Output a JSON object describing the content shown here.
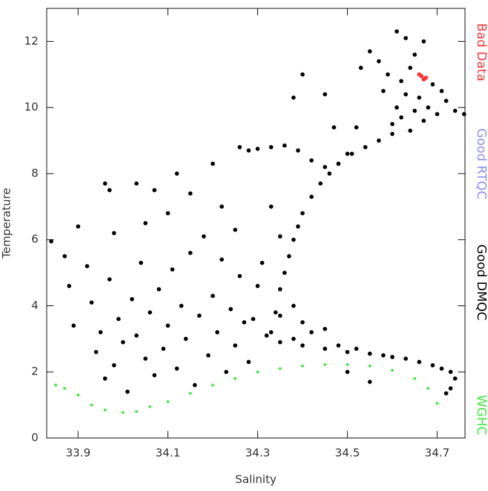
{
  "chart_data": {
    "type": "scatter",
    "x_label": "Salinity",
    "y_label": "Temperature",
    "xlim": [
      33.83,
      34.762
    ],
    "ylim": [
      0,
      13
    ],
    "xticks": [
      33.9,
      34.1,
      34.3,
      34.5,
      34.7
    ],
    "yticks": [
      0,
      2,
      4,
      6,
      8,
      10,
      12
    ],
    "series": [
      {
        "name": "Bad Data",
        "color": "#ff3333",
        "x": [
          34.66,
          34.665,
          34.67,
          34.675
        ],
        "y": [
          11.0,
          10.95,
          10.85,
          10.9
        ]
      },
      {
        "name": "Good RTQC",
        "color": "#8c8cff",
        "x": [],
        "y": []
      },
      {
        "name": "Good DMQC",
        "color": "#000000",
        "x": [
          33.84,
          33.87,
          33.88,
          33.89,
          33.9,
          33.92,
          33.93,
          33.94,
          33.95,
          33.96,
          33.97,
          33.98,
          33.99,
          34.0,
          34.01,
          34.02,
          34.03,
          34.04,
          34.05,
          34.06,
          34.07,
          34.08,
          34.09,
          34.1,
          34.11,
          34.12,
          34.13,
          34.14,
          34.15,
          34.16,
          34.17,
          34.18,
          34.19,
          34.2,
          34.21,
          34.22,
          34.23,
          34.24,
          34.25,
          34.26,
          34.27,
          34.28,
          34.29,
          34.3,
          33.96,
          33.97,
          34.03,
          34.07,
          34.12,
          34.2,
          34.15,
          34.1,
          34.05,
          33.98,
          34.22,
          34.25,
          34.26,
          34.28,
          34.3,
          34.33,
          34.36,
          34.39,
          34.42,
          34.45,
          34.48,
          34.5,
          34.47,
          34.52,
          34.45,
          34.4,
          34.38,
          34.33,
          34.34,
          34.35,
          34.36,
          34.37,
          34.38,
          34.39,
          34.4,
          34.42,
          34.44,
          34.46,
          34.48,
          34.51,
          34.54,
          34.57,
          34.6,
          34.33,
          34.35,
          34.31,
          34.6,
          34.61,
          34.62,
          34.63,
          34.64,
          34.65,
          34.66,
          34.67,
          34.68,
          34.7,
          34.72,
          34.74,
          34.76,
          34.55,
          34.57,
          34.59,
          34.61,
          34.63,
          34.65,
          34.67,
          34.64,
          34.62,
          34.69,
          34.71,
          34.53,
          34.58,
          34.32,
          34.35,
          34.38,
          34.4,
          34.42,
          34.45,
          34.48,
          34.5,
          34.52,
          34.55,
          34.58,
          34.6,
          34.63,
          34.66,
          34.69,
          34.71,
          34.73,
          34.74,
          34.73,
          34.72,
          34.4,
          34.45,
          34.5,
          34.55,
          34.35,
          34.38
        ],
        "y": [
          5.95,
          5.5,
          4.6,
          3.4,
          6.4,
          5.2,
          4.1,
          2.6,
          3.2,
          1.8,
          4.8,
          2.2,
          3.6,
          2.9,
          1.4,
          4.2,
          3.1,
          5.3,
          2.4,
          3.8,
          1.9,
          4.5,
          2.7,
          3.4,
          5.1,
          2.1,
          4.0,
          3.0,
          5.6,
          1.6,
          3.7,
          6.1,
          2.5,
          4.3,
          3.2,
          5.4,
          2.0,
          3.9,
          2.8,
          4.9,
          3.5,
          2.3,
          3.6,
          4.6,
          7.7,
          7.5,
          7.7,
          7.5,
          8.0,
          8.3,
          7.4,
          6.8,
          6.5,
          6.2,
          7.0,
          6.3,
          8.8,
          8.7,
          8.75,
          8.8,
          8.85,
          8.7,
          8.4,
          8.2,
          8.3,
          8.6,
          9.4,
          9.4,
          10.4,
          11.0,
          10.3,
          3.2,
          3.8,
          4.5,
          5.0,
          5.5,
          6.0,
          6.4,
          6.8,
          7.3,
          7.7,
          8.0,
          8.3,
          8.6,
          8.8,
          9.0,
          9.2,
          7.0,
          6.1,
          5.3,
          9.5,
          10.0,
          9.7,
          10.4,
          9.3,
          9.9,
          10.3,
          9.6,
          10.0,
          9.8,
          10.2,
          9.9,
          9.8,
          11.7,
          11.4,
          11.0,
          12.3,
          12.1,
          11.6,
          12.0,
          11.2,
          10.8,
          10.7,
          10.5,
          11.2,
          10.5,
          3.1,
          2.9,
          3.0,
          2.8,
          3.2,
          2.7,
          2.8,
          2.6,
          2.7,
          2.55,
          2.5,
          2.45,
          2.4,
          2.3,
          2.2,
          2.1,
          2.0,
          1.8,
          1.5,
          1.35,
          3.5,
          3.3,
          2.0,
          1.7,
          3.7,
          4.0
        ]
      },
      {
        "name": "WGHC",
        "color": "#33ee33",
        "x": [
          33.85,
          33.87,
          33.9,
          33.93,
          33.96,
          34.0,
          34.03,
          34.06,
          34.1,
          34.15,
          34.2,
          34.25,
          34.3,
          34.35,
          34.4,
          34.45,
          34.5,
          34.55,
          34.6,
          34.65,
          34.68,
          34.7
        ],
        "y": [
          1.6,
          1.5,
          1.3,
          1.0,
          0.85,
          0.77,
          0.8,
          0.95,
          1.1,
          1.35,
          1.6,
          1.8,
          2.0,
          2.1,
          2.18,
          2.22,
          2.22,
          2.18,
          2.05,
          1.8,
          1.5,
          1.05
        ]
      }
    ]
  }
}
